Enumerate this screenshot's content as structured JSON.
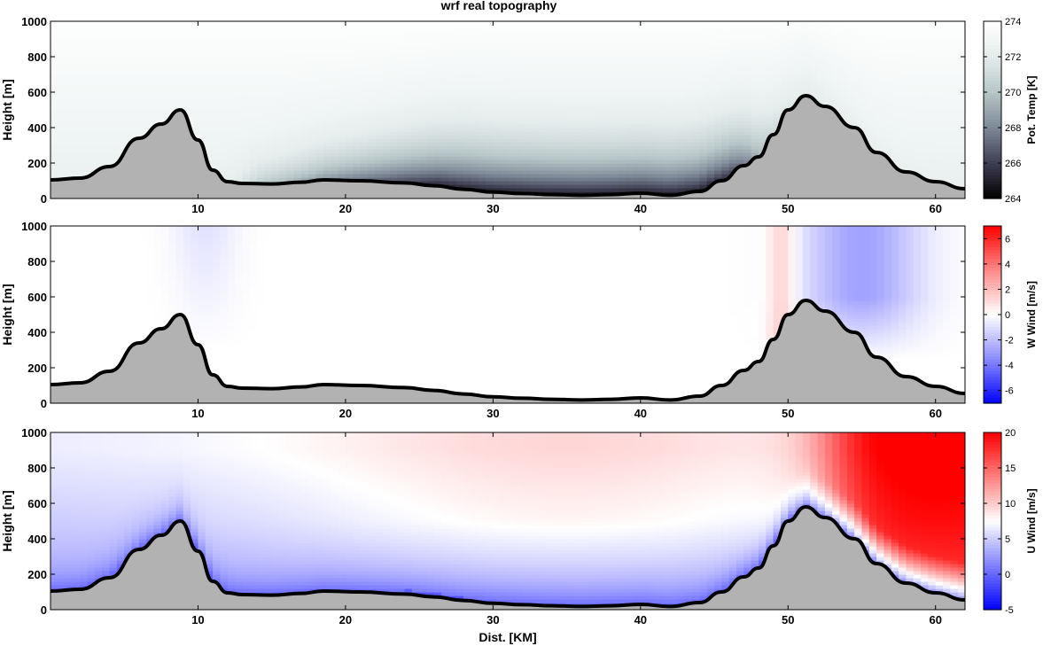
{
  "title": "wrf real topography",
  "chart_data": [
    {
      "type": "heatmap",
      "variable": "potential temperature",
      "ylabel": "Height [m]",
      "xlabel": "",
      "xlim": [
        0,
        62
      ],
      "ylim": [
        0,
        1000
      ],
      "xticks": [
        10,
        20,
        30,
        40,
        50,
        60
      ],
      "yticks": [
        0,
        200,
        400,
        600,
        800,
        1000
      ],
      "colorbar": {
        "label": "Pot. Temp [K]",
        "range": [
          264,
          274
        ],
        "ticks": [
          264,
          266,
          268,
          270,
          272,
          274
        ],
        "colors": [
          "#000000",
          "#3e3e52",
          "#7d8896",
          "#b7c6c7",
          "#e4ecec",
          "#ffffff"
        ]
      }
    },
    {
      "type": "heatmap",
      "variable": "vertical wind",
      "ylabel": "Height [m]",
      "xlabel": "",
      "xlim": [
        0,
        62
      ],
      "ylim": [
        0,
        1000
      ],
      "xticks": [
        10,
        20,
        30,
        40,
        50,
        60
      ],
      "yticks": [
        0,
        200,
        400,
        600,
        800,
        1000
      ],
      "colorbar": {
        "label": "W Wind [m/s]",
        "range": [
          -7,
          7
        ],
        "ticks": [
          -6,
          -4,
          -2,
          0,
          2,
          4,
          6
        ],
        "colors": [
          "#0000ff",
          "#8a8aff",
          "#ffffff",
          "#ff8a8a",
          "#ff0000"
        ]
      }
    },
    {
      "type": "heatmap",
      "variable": "horizontal wind",
      "ylabel": "Height [m]",
      "xlabel": "Dist. [KM]",
      "xlim": [
        0,
        62
      ],
      "ylim": [
        0,
        1000
      ],
      "xticks": [
        10,
        20,
        30,
        40,
        50,
        60
      ],
      "yticks": [
        0,
        200,
        400,
        600,
        800,
        1000
      ],
      "colorbar": {
        "label": "U Wind [m/s]",
        "range": [
          -5,
          20
        ],
        "ticks": [
          -5,
          0,
          5,
          10,
          15,
          20
        ],
        "colors": [
          "#0000ff",
          "#ffffff",
          "#ff0000"
        ]
      }
    }
  ],
  "terrain": {
    "x": [
      0,
      2,
      4,
      6,
      7.5,
      8.8,
      10,
      11,
      12,
      13,
      15,
      17,
      18.5,
      21,
      24,
      26,
      28,
      30,
      32,
      34,
      36,
      38,
      40,
      42,
      44,
      45.5,
      47,
      48,
      49,
      50,
      51.2,
      52.5,
      54.5,
      56,
      58,
      60,
      62
    ],
    "y": [
      105,
      115,
      180,
      340,
      420,
      500,
      330,
      160,
      95,
      85,
      82,
      92,
      105,
      100,
      88,
      72,
      52,
      36,
      28,
      22,
      18,
      22,
      30,
      18,
      40,
      100,
      185,
      235,
      360,
      500,
      580,
      520,
      400,
      260,
      150,
      95,
      55
    ]
  }
}
